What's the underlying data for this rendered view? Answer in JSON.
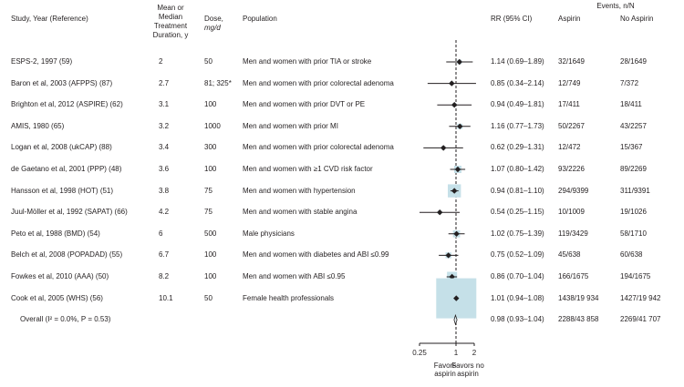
{
  "headers": {
    "study": "Study, Year (Reference)",
    "duration_line1": "Mean or",
    "duration_line2": "Median",
    "duration_line3": "Treatment",
    "duration_line4": "Duration, y",
    "dose_line1": "Dose,",
    "dose_line2": "mg/d",
    "population": "Population",
    "rr": "RR (95% CI)",
    "events": "Events, n/N",
    "aspirin": "Aspirin",
    "no_aspirin": "No Aspirin"
  },
  "chart_data": {
    "type": "forest",
    "x_scale": "log",
    "xlim": [
      0.25,
      2
    ],
    "xticks": [
      {
        "value": 0.25,
        "label": "0.25"
      },
      {
        "value": 1,
        "label": "1"
      },
      {
        "value": 2,
        "label": "2"
      }
    ],
    "reference_line": 1,
    "favors_left_line1": "Favors",
    "favors_left_line2": "aspirin",
    "favors_right_line1": "Favors no",
    "favors_right_line2": "aspirin",
    "studies": [
      {
        "study": "ESPS-2, 1997 (59)",
        "duration": "2",
        "dose": "50",
        "population": "Men and women with prior TIA or stroke",
        "rr": 1.14,
        "lo": 0.69,
        "hi": 1.89,
        "rr_text": "1.14 (0.69–1.89)",
        "aspirin": "32/1649",
        "no_aspirin": "28/1649",
        "weight": 0.9
      },
      {
        "study": "Baron et al, 2003 (AFPPS) (87)",
        "duration": "2.7",
        "dose": "81; 325*",
        "population": "Men and women with prior colorectal adenoma",
        "rr": 0.85,
        "lo": 0.34,
        "hi": 2.14,
        "rr_text": "0.85 (0.34–2.14)",
        "aspirin": "12/749",
        "no_aspirin": "7/372",
        "weight": 0.3
      },
      {
        "study": "Brighton et al, 2012 (ASPIRE) (62)",
        "duration": "3.1",
        "dose": "100",
        "population": "Men and women with prior DVT or PE",
        "rr": 0.94,
        "lo": 0.49,
        "hi": 1.81,
        "rr_text": "0.94 (0.49–1.81)",
        "aspirin": "17/411",
        "no_aspirin": "18/411",
        "weight": 0.5
      },
      {
        "study": "AMIS, 1980 (65)",
        "duration": "3.2",
        "dose": "1000",
        "population": "Men and women with prior MI",
        "rr": 1.16,
        "lo": 0.77,
        "hi": 1.73,
        "rr_text": "1.16 (0.77–1.73)",
        "aspirin": "50/2267",
        "no_aspirin": "43/2257",
        "weight": 1.3
      },
      {
        "study": "Logan et al, 2008 (ukCAP) (88)",
        "duration": "3.4",
        "dose": "300",
        "population": "Men and women with prior colorectal adenoma",
        "rr": 0.62,
        "lo": 0.29,
        "hi": 1.31,
        "rr_text": "0.62 (0.29–1.31)",
        "aspirin": "12/472",
        "no_aspirin": "15/367",
        "weight": 0.4
      },
      {
        "study": "de Gaetano et al, 2001 (PPP) (48)",
        "duration": "3.6",
        "dose": "100",
        "population": "Men and women with ≥1 CVD risk factor",
        "rr": 1.07,
        "lo": 0.8,
        "hi": 1.42,
        "rr_text": "1.07 (0.80–1.42)",
        "aspirin": "93/2226",
        "no_aspirin": "89/2269",
        "weight": 2.5
      },
      {
        "study": "Hansson et al, 1998 (HOT) (51)",
        "duration": "3.8",
        "dose": "75",
        "population": "Men and women with hypertension",
        "rr": 0.94,
        "lo": 0.81,
        "hi": 1.1,
        "rr_text": "0.94 (0.81–1.10)",
        "aspirin": "294/9399",
        "no_aspirin": "311/9391",
        "weight": 8.0
      },
      {
        "study": "Juul-Möller et al, 1992 (SAPAT) (66)",
        "duration": "4.2",
        "dose": "75",
        "population": "Men and women with stable angina",
        "rr": 0.54,
        "lo": 0.25,
        "hi": 1.15,
        "rr_text": "0.54 (0.25–1.15)",
        "aspirin": "10/1009",
        "no_aspirin": "19/1026",
        "weight": 0.4
      },
      {
        "study": "Peto et al, 1988 (BMD) (54)",
        "duration": "6",
        "dose": "500",
        "population": "Male physicians",
        "rr": 1.02,
        "lo": 0.75,
        "hi": 1.39,
        "rr_text": "1.02 (0.75–1.39)",
        "aspirin": "119/3429",
        "no_aspirin": "58/1710",
        "weight": 2.3
      },
      {
        "study": "Belch et al, 2008 (POPADAD) (55)",
        "duration": "6.7",
        "dose": "100",
        "population": "Men and women with diabetes and ABI ≤0.99",
        "rr": 0.75,
        "lo": 0.52,
        "hi": 1.09,
        "rr_text": "0.75 (0.52–1.09)",
        "aspirin": "45/638",
        "no_aspirin": "60/638",
        "weight": 1.6
      },
      {
        "study": "Fowkes et al, 2010 (AAA) (50)",
        "duration": "8.2",
        "dose": "100",
        "population": "Men and women with ABI ≤0.95",
        "rr": 0.86,
        "lo": 0.7,
        "hi": 1.04,
        "rr_text": "0.86 (0.70–1.04)",
        "aspirin": "166/1675",
        "no_aspirin": "194/1675",
        "weight": 4.7
      },
      {
        "study": "Cook et al, 2005 (WHS) (56)",
        "duration": "10.1",
        "dose": "50",
        "population": "Female health professionals",
        "rr": 1.01,
        "lo": 0.94,
        "hi": 1.08,
        "rr_text": "1.01 (0.94–1.08)",
        "aspirin": "1438/19 934",
        "no_aspirin": "1427/19 942",
        "weight": 75.0
      }
    ],
    "overall": {
      "label": "Overall (I² = 0.0%, P = 0.53)",
      "rr": 0.98,
      "lo": 0.93,
      "hi": 1.04,
      "rr_text": "0.98 (0.93–1.04)",
      "aspirin": "2288/43 858",
      "no_aspirin": "2269/41 707"
    },
    "colors": {
      "box": "#c5e0e8",
      "box_edge": "#a9cdd8",
      "ink": "#231f20",
      "diamond_fill": "#e8f2f5"
    }
  }
}
